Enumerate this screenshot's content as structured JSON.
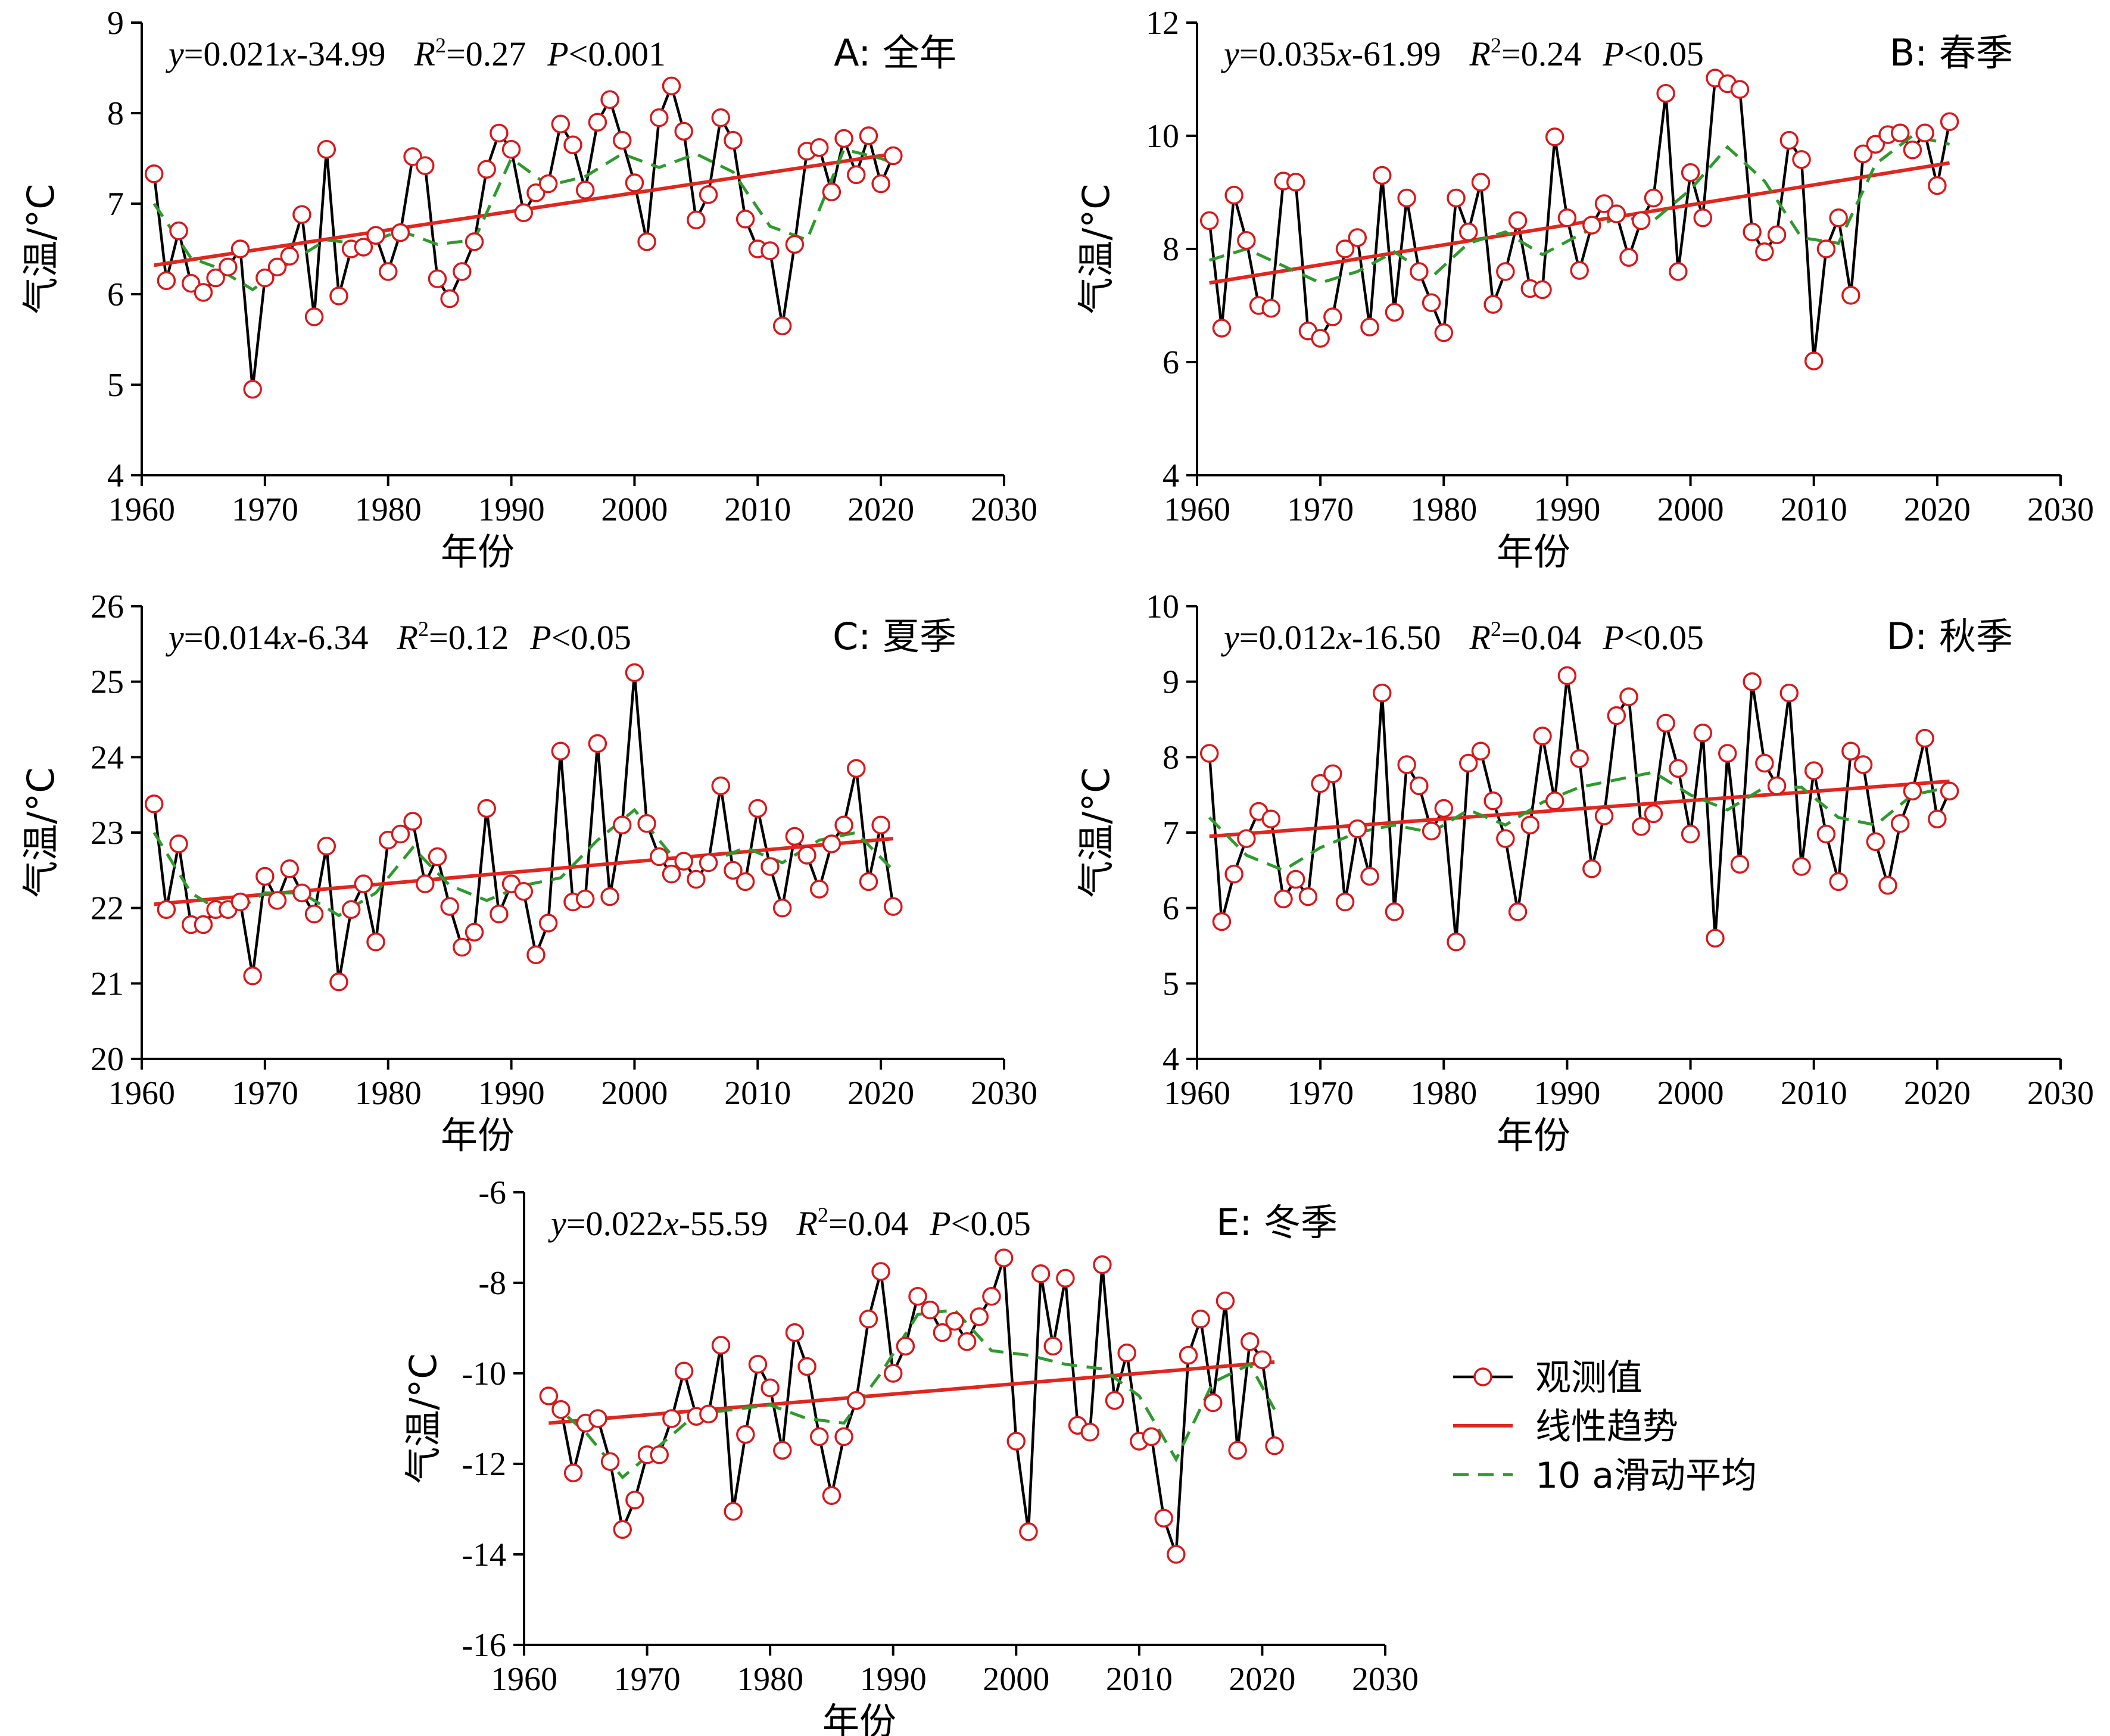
{
  "legend": {
    "observed": "观测值",
    "trend": "线性趋势",
    "moving": "10 a滑动平均"
  },
  "colors": {
    "observed_line": "#000000",
    "marker_stroke": "#d7191c",
    "trend": "#e0271f",
    "moving": "#2e9a2e"
  },
  "chart_data": [
    {
      "id": "A",
      "type": "line",
      "label": "A: 全年",
      "equation": {
        "y": "y",
        "eq1": "=0.021",
        "x": "x",
        "eq2": "-34.99",
        "R": "R",
        "sup": "2",
        "eq3": "=0.27",
        "P": "P",
        "eq4": "<0.001"
      },
      "xlabel": "年份",
      "ylabel": "气温/°C",
      "xlim": [
        1960,
        2030
      ],
      "ylim": [
        4,
        9
      ],
      "xticks": [
        1960,
        1970,
        1980,
        1990,
        2000,
        2010,
        2020,
        2030
      ],
      "yticks": [
        4,
        5,
        6,
        7,
        8,
        9
      ],
      "x_start": 1961,
      "observed": [
        7.33,
        6.15,
        6.7,
        6.12,
        6.02,
        6.18,
        6.3,
        6.5,
        4.95,
        6.18,
        6.3,
        6.42,
        6.88,
        5.75,
        7.6,
        5.98,
        6.5,
        6.52,
        6.65,
        6.25,
        6.68,
        7.52,
        7.42,
        6.17,
        5.95,
        6.25,
        6.58,
        7.38,
        7.78,
        7.6,
        6.9,
        7.12,
        7.22,
        7.88,
        7.65,
        7.15,
        7.9,
        8.15,
        7.7,
        7.23,
        6.58,
        7.95,
        8.3,
        7.8,
        6.82,
        7.1,
        7.95,
        7.7,
        6.83,
        6.5,
        6.48,
        5.65,
        6.55,
        7.58,
        7.62,
        7.13,
        7.72,
        7.32,
        7.75,
        7.22,
        7.53
      ],
      "trend": {
        "x": [
          1961,
          2021
        ],
        "y": [
          6.32,
          7.55
        ]
      },
      "moving_x": [
        1961,
        1964,
        1966,
        1969,
        1972,
        1975,
        1978,
        1981,
        1984,
        1987,
        1990,
        1993,
        1996,
        1999,
        2002,
        2005,
        2008,
        2011,
        2014,
        2017,
        2020,
        2021
      ],
      "moving": [
        7.0,
        6.4,
        6.3,
        6.05,
        6.35,
        6.6,
        6.55,
        6.7,
        6.55,
        6.6,
        7.5,
        7.2,
        7.3,
        7.55,
        7.4,
        7.55,
        7.35,
        6.75,
        6.6,
        7.6,
        7.5,
        7.45
      ]
    },
    {
      "id": "B",
      "type": "line",
      "label": "B: 春季",
      "equation": {
        "y": "y",
        "eq1": "=0.035",
        "x": "x",
        "eq2": "-61.99",
        "R": "R",
        "sup": "2",
        "eq3": "=0.24",
        "P": "P",
        "eq4": "<0.05"
      },
      "xlabel": "年份",
      "ylabel": "气温/°C",
      "xlim": [
        1960,
        2030
      ],
      "ylim": [
        4,
        12
      ],
      "xticks": [
        1960,
        1970,
        1980,
        1990,
        2000,
        2010,
        2020,
        2030
      ],
      "yticks": [
        4,
        6,
        8,
        10,
        12
      ],
      "x_start": 1961,
      "observed": [
        8.5,
        6.6,
        8.95,
        8.15,
        7.0,
        6.95,
        9.2,
        9.18,
        6.55,
        6.42,
        6.8,
        8.0,
        8.2,
        6.62,
        9.3,
        6.88,
        8.9,
        7.6,
        7.05,
        6.52,
        8.9,
        8.3,
        9.18,
        7.02,
        7.6,
        8.5,
        7.3,
        7.28,
        9.98,
        8.55,
        7.62,
        8.42,
        8.8,
        8.62,
        7.85,
        8.5,
        8.9,
        10.75,
        7.6,
        9.35,
        8.55,
        11.02,
        10.92,
        10.82,
        8.3,
        7.95,
        8.25,
        9.92,
        9.58,
        6.02,
        8.0,
        8.55,
        7.18,
        9.68,
        9.85,
        10.02,
        10.05,
        9.75,
        10.05,
        9.12,
        10.25
      ],
      "trend": {
        "x": [
          1961,
          2021
        ],
        "y": [
          7.4,
          9.52
        ]
      },
      "moving_x": [
        1961,
        1964,
        1967,
        1970,
        1973,
        1976,
        1979,
        1982,
        1985,
        1988,
        1991,
        1994,
        1997,
        2000,
        2003,
        2006,
        2009,
        2012,
        2015,
        2018,
        2021
      ],
      "moving": [
        7.8,
        8.0,
        7.7,
        7.4,
        7.6,
        7.95,
        7.5,
        8.1,
        8.3,
        7.9,
        8.25,
        8.55,
        8.5,
        9.05,
        9.8,
        9.2,
        8.2,
        8.1,
        9.5,
        10.0,
        9.85
      ]
    },
    {
      "id": "C",
      "type": "line",
      "label": "C: 夏季",
      "equation": {
        "y": "y",
        "eq1": "=0.014",
        "x": "x",
        "eq2": "-6.34",
        "R": "R",
        "sup": "2",
        "eq3": "=0.12",
        "P": "P",
        "eq4": "<0.05"
      },
      "xlabel": "年份",
      "ylabel": "气温/°C",
      "xlim": [
        1960,
        2030
      ],
      "ylim": [
        20,
        26
      ],
      "xticks": [
        1960,
        1970,
        1980,
        1990,
        2000,
        2010,
        2020,
        2030
      ],
      "yticks": [
        20,
        21,
        22,
        23,
        24,
        25,
        26
      ],
      "x_start": 1961,
      "observed": [
        23.38,
        21.98,
        22.85,
        21.78,
        21.78,
        21.98,
        21.98,
        22.08,
        21.1,
        22.42,
        22.1,
        22.52,
        22.2,
        21.92,
        22.82,
        21.02,
        21.98,
        22.32,
        21.55,
        22.9,
        22.98,
        23.15,
        22.32,
        22.68,
        22.02,
        21.48,
        21.68,
        23.32,
        21.92,
        22.32,
        22.22,
        21.38,
        21.8,
        24.08,
        22.08,
        22.12,
        24.18,
        22.15,
        23.1,
        25.12,
        23.12,
        22.68,
        22.45,
        22.62,
        22.38,
        22.6,
        23.62,
        22.5,
        22.35,
        23.32,
        22.55,
        22.0,
        22.95,
        22.7,
        22.25,
        22.85,
        23.1,
        23.85,
        22.35,
        23.1,
        22.02
      ],
      "trend": {
        "x": [
          1961,
          2021
        ],
        "y": [
          22.05,
          22.92
        ]
      },
      "moving_x": [
        1961,
        1964,
        1967,
        1970,
        1973,
        1976,
        1979,
        1982,
        1985,
        1988,
        1991,
        1994,
        1997,
        2000,
        2003,
        2006,
        2009,
        2012,
        2015,
        2018,
        2021
      ],
      "moving": [
        23.0,
        22.2,
        21.9,
        22.2,
        22.2,
        21.9,
        22.2,
        22.8,
        22.3,
        22.1,
        22.3,
        22.4,
        22.9,
        23.3,
        22.7,
        22.6,
        22.8,
        22.6,
        22.9,
        23.0,
        22.5
      ]
    },
    {
      "id": "D",
      "type": "line",
      "label": "D: 秋季",
      "equation": {
        "y": "y",
        "eq1": "=0.012",
        "x": "x",
        "eq2": "-16.50",
        "R": "R",
        "sup": "2",
        "eq3": "=0.04",
        "P": "P",
        "eq4": "<0.05"
      },
      "xlabel": "年份",
      "ylabel": "气温/°C",
      "xlim": [
        1960,
        2030
      ],
      "ylim": [
        4,
        10
      ],
      "xticks": [
        1960,
        1970,
        1980,
        1990,
        2000,
        2010,
        2020,
        2030
      ],
      "yticks": [
        4,
        5,
        6,
        7,
        8,
        9,
        10
      ],
      "x_start": 1961,
      "observed": [
        8.05,
        5.82,
        6.45,
        6.92,
        7.28,
        7.18,
        6.12,
        6.38,
        6.15,
        7.65,
        7.78,
        6.08,
        7.05,
        6.42,
        8.85,
        5.95,
        7.9,
        7.62,
        7.02,
        7.32,
        5.55,
        7.92,
        8.08,
        7.42,
        6.92,
        5.95,
        7.1,
        8.28,
        7.42,
        9.08,
        7.98,
        6.52,
        7.22,
        8.55,
        8.8,
        7.08,
        7.25,
        8.45,
        7.85,
        6.98,
        8.32,
        5.6,
        8.05,
        6.58,
        9.0,
        7.92,
        7.62,
        8.85,
        6.55,
        7.82,
        6.98,
        6.35,
        8.08,
        7.9,
        6.88,
        6.3,
        7.12,
        7.55,
        8.25,
        7.18,
        7.55
      ],
      "trend": {
        "x": [
          1961,
          2021
        ],
        "y": [
          6.95,
          7.68
        ]
      },
      "moving_x": [
        1961,
        1964,
        1967,
        1970,
        1973,
        1976,
        1979,
        1982,
        1985,
        1988,
        1991,
        1994,
        1997,
        2000,
        2003,
        2006,
        2009,
        2012,
        2015,
        2018,
        2021
      ],
      "moving": [
        7.2,
        6.7,
        6.5,
        6.8,
        7.0,
        7.1,
        7.0,
        7.3,
        7.1,
        7.4,
        7.6,
        7.7,
        7.8,
        7.5,
        7.3,
        7.6,
        7.6,
        7.2,
        7.1,
        7.5,
        7.6
      ]
    },
    {
      "id": "E",
      "type": "line",
      "label": "E: 冬季",
      "equation": {
        "y": "y",
        "eq1": "=0.022",
        "x": "x",
        "eq2": "-55.59",
        "R": "R",
        "sup": "2",
        "eq3": "=0.04",
        "P": "P",
        "eq4": "<0.05"
      },
      "xlabel": "年份",
      "ylabel": "气温/°C",
      "xlim": [
        1960,
        2030
      ],
      "ylim": [
        -16,
        -6
      ],
      "xticks": [
        1960,
        1970,
        1980,
        1990,
        2000,
        2010,
        2020,
        2030
      ],
      "yticks": [
        -16,
        -14,
        -12,
        -10,
        -8,
        -6
      ],
      "x_start": 1962,
      "observed": [
        -10.5,
        -10.8,
        -12.2,
        -11.1,
        -11.0,
        -11.95,
        -13.45,
        -12.8,
        -11.8,
        -11.8,
        -11.0,
        -9.95,
        -10.95,
        -10.9,
        -9.38,
        -13.05,
        -11.35,
        -9.8,
        -10.32,
        -11.7,
        -9.1,
        -9.85,
        -11.4,
        -12.7,
        -11.4,
        -10.6,
        -8.8,
        -7.75,
        -10.0,
        -9.4,
        -8.3,
        -8.6,
        -9.1,
        -8.85,
        -9.3,
        -8.75,
        -8.3,
        -7.45,
        -11.5,
        -13.5,
        -7.8,
        -9.4,
        -7.9,
        -11.15,
        -11.3,
        -7.6,
        -10.6,
        -9.55,
        -11.5,
        -11.4,
        -13.2,
        -14.0,
        -9.6,
        -8.8,
        -10.65,
        -8.4,
        -11.7,
        -9.3,
        -9.7,
        -11.6
      ],
      "trend": {
        "x": [
          1962,
          2021
        ],
        "y": [
          -11.1,
          -9.75
        ]
      },
      "moving_x": [
        1962,
        1965,
        1968,
        1971,
        1974,
        1977,
        1980,
        1983,
        1986,
        1989,
        1992,
        1995,
        1998,
        2001,
        2004,
        2007,
        2010,
        2013,
        2016,
        2019,
        2021
      ],
      "moving": [
        -10.6,
        -11.3,
        -12.3,
        -11.6,
        -10.9,
        -10.8,
        -10.7,
        -11.0,
        -11.1,
        -10.0,
        -8.7,
        -8.6,
        -9.5,
        -9.6,
        -9.8,
        -9.9,
        -10.5,
        -11.9,
        -10.2,
        -9.8,
        -10.8
      ]
    }
  ]
}
